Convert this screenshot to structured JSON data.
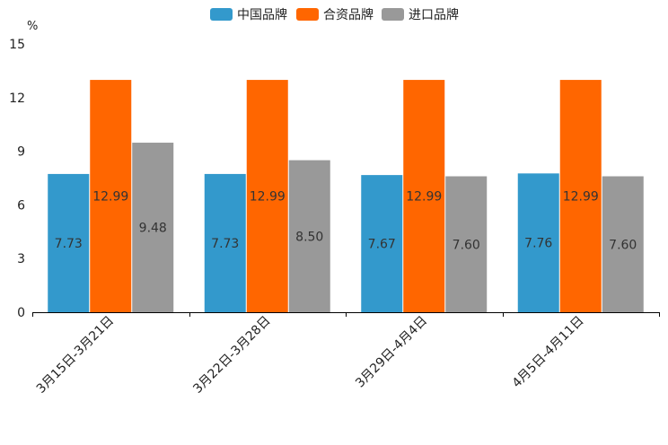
{
  "chart_data": {
    "type": "bar",
    "unit": "%",
    "categories": [
      "3月15日-3月21日",
      "3月22日-3月28日",
      "3月29日-4月4日",
      "4月5日-4月11日"
    ],
    "series": [
      {
        "name": "中国品牌",
        "color": "#3399cc",
        "values": [
          7.73,
          7.73,
          7.67,
          7.76
        ],
        "labels": [
          "7.73",
          "7.73",
          "7.67",
          "7.76"
        ]
      },
      {
        "name": "合资品牌",
        "color": "#ff6600",
        "values": [
          12.99,
          12.99,
          12.99,
          12.99
        ],
        "labels": [
          "12.99",
          "12.99",
          "12.99",
          "12.99"
        ]
      },
      {
        "name": "进口品牌",
        "color": "#999999",
        "values": [
          9.48,
          8.5,
          7.6,
          7.6
        ],
        "labels": [
          "9.48",
          "8.50",
          "7.60",
          "7.60"
        ]
      }
    ],
    "ylim": [
      0,
      15
    ],
    "yticks": [
      "0",
      "3",
      "6",
      "9",
      "12",
      "15"
    ],
    "legend_position": "top-center",
    "grid": false
  }
}
